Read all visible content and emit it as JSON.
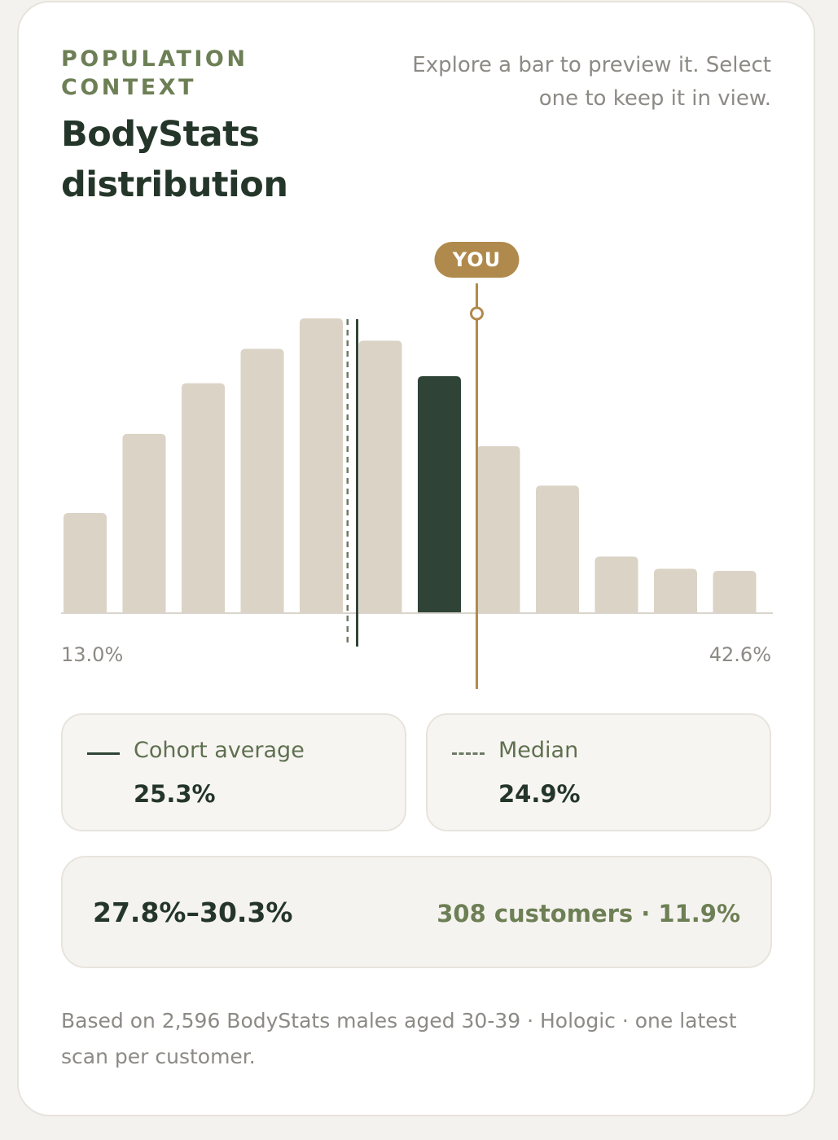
{
  "header": {
    "eyebrow": "POPULATION CONTEXT",
    "title": "BodyStats distribution",
    "hint": "Explore a bar to preview it. Select one to keep it in view."
  },
  "colors": {
    "bar": "#dbd3c6",
    "bar_selected": "#2f4337",
    "you_marker": "#b08a4c",
    "average_line": "#2e4435",
    "median_line": "#6d7a66",
    "baseline": "#d9d5cd"
  },
  "chart_data": {
    "type": "bar",
    "title": "BodyStats distribution",
    "x_range_label": [
      "13.0%",
      "42.6%"
    ],
    "xlim": [
      13.0,
      42.6
    ],
    "bin_count": 12,
    "values": [
      9.8,
      17.6,
      22.6,
      26.0,
      29.0,
      26.8,
      23.3,
      16.4,
      12.5,
      5.5,
      4.3,
      4.1
    ],
    "ylim": [
      0,
      29.0
    ],
    "selected_index": 6,
    "you_marker_label": "YOU",
    "you_value": 30.3,
    "average_value": 25.3,
    "median_value": 24.9,
    "grid": false,
    "legend": "below"
  },
  "stats": {
    "average": {
      "label": "Cohort average",
      "value": "25.3%"
    },
    "median": {
      "label": "Median",
      "value": "24.9%"
    }
  },
  "selection": {
    "range": "27.8%–30.3%",
    "count": "308 customers · 11.9%"
  },
  "footnote": "Based on 2,596 BodyStats males aged 30-39 · Hologic · one latest scan per customer."
}
